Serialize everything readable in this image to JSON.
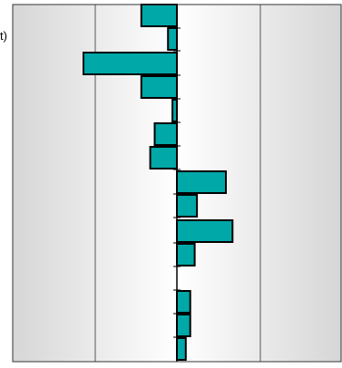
{
  "chart_data": {
    "type": "bar",
    "orientation": "horizontal",
    "title": "",
    "xlabel": "",
    "ylabel": "",
    "xlim": [
      -2.2,
      3.8
    ],
    "grid": true,
    "visible_label_fragment": "t)",
    "bar_color": "#00a8a8",
    "bar_edge_color": "#000000",
    "plot_background": "gradient-gray-white-gray",
    "values": [
      -0.8,
      -0.2,
      -2.1,
      -0.8,
      -0.1,
      -0.5,
      -0.6,
      1.1,
      0.45,
      1.25,
      0.4,
      0.3,
      0.3,
      0.2
    ]
  }
}
